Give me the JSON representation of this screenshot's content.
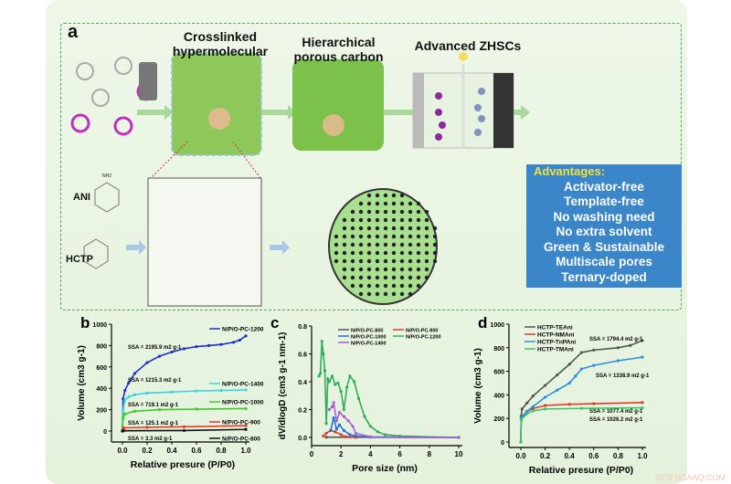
{
  "panel_a": {
    "label": "a",
    "crosslinked": "Crosslinked hypermolecular",
    "hierarchical": "Hierarchical porous carbon",
    "zhsc": "Advanced ZHSCs",
    "ani": "ANI",
    "hctp": "HCTP",
    "nh2": "NH2",
    "advantages_title": "Advantages:",
    "advantages": [
      "Activator-free",
      "Template-free",
      "No washing need",
      "No extra solvent",
      "Green & Sustainable",
      "Multiscale pores",
      "Ternary-doped"
    ],
    "colors": {
      "arrow": "#8fc98a",
      "advantages_bg": "#3b86c9",
      "carbon": "#7cc14a"
    }
  },
  "watermark": "SCIENGAAQ.COM",
  "chart_data": [
    {
      "panel": "b",
      "type": "line",
      "xlabel": "Relative presure (P/P0)",
      "ylabel": "Volume (cm3 g-1)",
      "xlim": [
        0,
        1.0
      ],
      "ylim": [
        0,
        1000
      ],
      "xticks": [
        "0.0",
        "0.2",
        "0.4",
        "0.6",
        "0.8",
        "1.0"
      ],
      "yticks": [
        "0",
        "200",
        "400",
        "600",
        "800",
        "1000"
      ],
      "legend": "right",
      "series": [
        {
          "name": "N/P/O-PC-1200",
          "color": "#1f2fc9",
          "annotation": "SSA = 2195.9 m2 g-1",
          "points": [
            [
              0,
              0
            ],
            [
              0.005,
              300
            ],
            [
              0.02,
              380
            ],
            [
              0.05,
              450
            ],
            [
              0.1,
              540
            ],
            [
              0.2,
              640
            ],
            [
              0.3,
              700
            ],
            [
              0.4,
              740
            ],
            [
              0.5,
              770
            ],
            [
              0.6,
              790
            ],
            [
              0.7,
              800
            ],
            [
              0.8,
              810
            ],
            [
              0.9,
              830
            ],
            [
              0.95,
              850
            ],
            [
              1.0,
              890
            ]
          ]
        },
        {
          "name": "N/P/O-PC-1400",
          "color": "#3ad2e0",
          "annotation": "SSA = 1215.3 m2 g-1",
          "points": [
            [
              0,
              0
            ],
            [
              0.005,
              200
            ],
            [
              0.02,
              290
            ],
            [
              0.05,
              320
            ],
            [
              0.1,
              340
            ],
            [
              0.2,
              355
            ],
            [
              0.4,
              365
            ],
            [
              0.6,
              375
            ],
            [
              0.8,
              380
            ],
            [
              1.0,
              385
            ]
          ]
        },
        {
          "name": "N/P/O-PC-1000",
          "color": "#3ccc2a",
          "annotation": "SSA = 719.1 m2 g-1",
          "points": [
            [
              0,
              0
            ],
            [
              0.005,
              120
            ],
            [
              0.02,
              160
            ],
            [
              0.1,
              185
            ],
            [
              0.3,
              200
            ],
            [
              0.6,
              205
            ],
            [
              1.0,
              210
            ]
          ]
        },
        {
          "name": "N/P/O-PC-900",
          "color": "#e23a2a",
          "annotation": "SSA = 125.1 m2 g-1",
          "points": [
            [
              0,
              0
            ],
            [
              0.01,
              30
            ],
            [
              0.2,
              35
            ],
            [
              0.5,
              40
            ],
            [
              1.0,
              50
            ]
          ]
        },
        {
          "name": "N/P/O-PC-800",
          "color": "#111111",
          "annotation": "SSA = 3.3 m2 g-1",
          "points": [
            [
              0,
              0
            ],
            [
              0.01,
              3
            ],
            [
              0.5,
              5
            ],
            [
              1.0,
              15
            ]
          ]
        }
      ]
    },
    {
      "panel": "c",
      "type": "line",
      "xlabel": "Pore size (nm)",
      "ylabel": "dV/dlogD (cm3 g-1 nm-1)",
      "xlim": [
        0,
        10
      ],
      "ylim": [
        0,
        0.8
      ],
      "xticks": [
        "0",
        "2",
        "4",
        "6",
        "8",
        "10"
      ],
      "yticks": [
        "0.0",
        "0.2",
        "0.4",
        "0.6",
        "0.8"
      ],
      "legend": "top",
      "series": [
        {
          "name": "N/P/O-PC-800",
          "color": "#555555",
          "points": [
            [
              1,
              0.002
            ],
            [
              3,
              0.001
            ],
            [
              10,
              0
            ]
          ]
        },
        {
          "name": "N/P/O-PC-900",
          "color": "#e23a2a",
          "points": [
            [
              0.8,
              0.01
            ],
            [
              1,
              0.03
            ],
            [
              1.3,
              0.05
            ],
            [
              1.6,
              0.04
            ],
            [
              2,
              0.02
            ],
            [
              2.3,
              0.005
            ],
            [
              3,
              0.003
            ],
            [
              10,
              0
            ]
          ]
        },
        {
          "name": "N/P/O-PC-1000",
          "color": "#2a6fd6",
          "points": [
            [
              1.3,
              0.05
            ],
            [
              1.5,
              0.14
            ],
            [
              1.7,
              0.06
            ],
            [
              1.9,
              0.09
            ],
            [
              2.2,
              0.05
            ],
            [
              2.6,
              0.02
            ],
            [
              3,
              0.01
            ],
            [
              4,
              0.002
            ],
            [
              10,
              0
            ]
          ]
        },
        {
          "name": "N/P/O-PC-1200",
          "color": "#2fae5a",
          "points": [
            [
              0.5,
              0.44
            ],
            [
              0.6,
              0.46
            ],
            [
              0.7,
              0.69
            ],
            [
              0.8,
              0.6
            ],
            [
              0.9,
              0.48
            ],
            [
              1.0,
              0.1
            ],
            [
              1.1,
              0.42
            ],
            [
              1.2,
              0.4
            ],
            [
              1.4,
              0.44
            ],
            [
              1.6,
              0.38
            ],
            [
              1.8,
              0.39
            ],
            [
              2.0,
              0.33
            ],
            [
              2.2,
              0.2
            ],
            [
              2.4,
              0.36
            ],
            [
              2.6,
              0.44
            ],
            [
              2.9,
              0.4
            ],
            [
              3.2,
              0.28
            ],
            [
              3.6,
              0.15
            ],
            [
              4,
              0.08
            ],
            [
              4.5,
              0.04
            ],
            [
              5,
              0.02
            ],
            [
              6,
              0.01
            ],
            [
              10,
              0
            ]
          ]
        },
        {
          "name": "N/P/O-PC-1400",
          "color": "#a860d8",
          "points": [
            [
              1.2,
              0.2
            ],
            [
              1.4,
              0.22
            ],
            [
              1.5,
              0.25
            ],
            [
              1.7,
              0.12
            ],
            [
              1.9,
              0.18
            ],
            [
              2.2,
              0.15
            ],
            [
              2.5,
              0.12
            ],
            [
              2.8,
              0.08
            ],
            [
              3,
              0.03
            ],
            [
              4,
              0.005
            ],
            [
              10,
              0
            ]
          ]
        }
      ]
    },
    {
      "panel": "d",
      "type": "line",
      "xlabel": "Relative presure (P/P0)",
      "ylabel": "Volume (cm3 g-1)",
      "xlim": [
        0,
        1.0
      ],
      "ylim": [
        0,
        1000
      ],
      "xticks": [
        "0.0",
        "0.2",
        "0.4",
        "0.6",
        "0.8",
        "1.0"
      ],
      "yticks": [
        "0",
        "200",
        "400",
        "600",
        "800",
        "1000"
      ],
      "legend": "top-left",
      "series": [
        {
          "name": "HCTP-TEAni",
          "color": "#555555",
          "annotation": "SSA = 1794.4 m2 g-1",
          "points": [
            [
              0,
              0
            ],
            [
              0.003,
              220
            ],
            [
              0.01,
              280
            ],
            [
              0.05,
              330
            ],
            [
              0.1,
              390
            ],
            [
              0.2,
              480
            ],
            [
              0.3,
              570
            ],
            [
              0.4,
              660
            ],
            [
              0.5,
              760
            ],
            [
              0.6,
              780
            ],
            [
              0.8,
              800
            ],
            [
              0.9,
              820
            ],
            [
              1.0,
              860
            ]
          ]
        },
        {
          "name": "HCTP-NMAni",
          "color": "#e23a2a",
          "annotation": "SSA = 1077.4 m2 g-1",
          "points": [
            [
              0,
              0
            ],
            [
              0.003,
              200
            ],
            [
              0.05,
              260
            ],
            [
              0.1,
              285
            ],
            [
              0.2,
              310
            ],
            [
              0.4,
              320
            ],
            [
              0.6,
              325
            ],
            [
              1.0,
              335
            ]
          ]
        },
        {
          "name": "HCTP-TnPAni",
          "color": "#2a8fe0",
          "annotation": "SSA = 1338.9 m2 g-1",
          "points": [
            [
              0,
              0
            ],
            [
              0.003,
              210
            ],
            [
              0.05,
              260
            ],
            [
              0.1,
              300
            ],
            [
              0.2,
              380
            ],
            [
              0.3,
              440
            ],
            [
              0.4,
              500
            ],
            [
              0.45,
              560
            ],
            [
              0.5,
              620
            ],
            [
              0.6,
              650
            ],
            [
              0.8,
              690
            ],
            [
              1.0,
              720
            ]
          ]
        },
        {
          "name": "HCTP-TMAni",
          "color": "#3cc46a",
          "annotation": "SSA = 1026.2 m2 g-1",
          "points": [
            [
              0,
              0
            ],
            [
              0.003,
              190
            ],
            [
              0.05,
              240
            ],
            [
              0.1,
              265
            ],
            [
              0.2,
              280
            ],
            [
              0.5,
              285
            ],
            [
              1.0,
              290
            ]
          ]
        }
      ]
    }
  ]
}
